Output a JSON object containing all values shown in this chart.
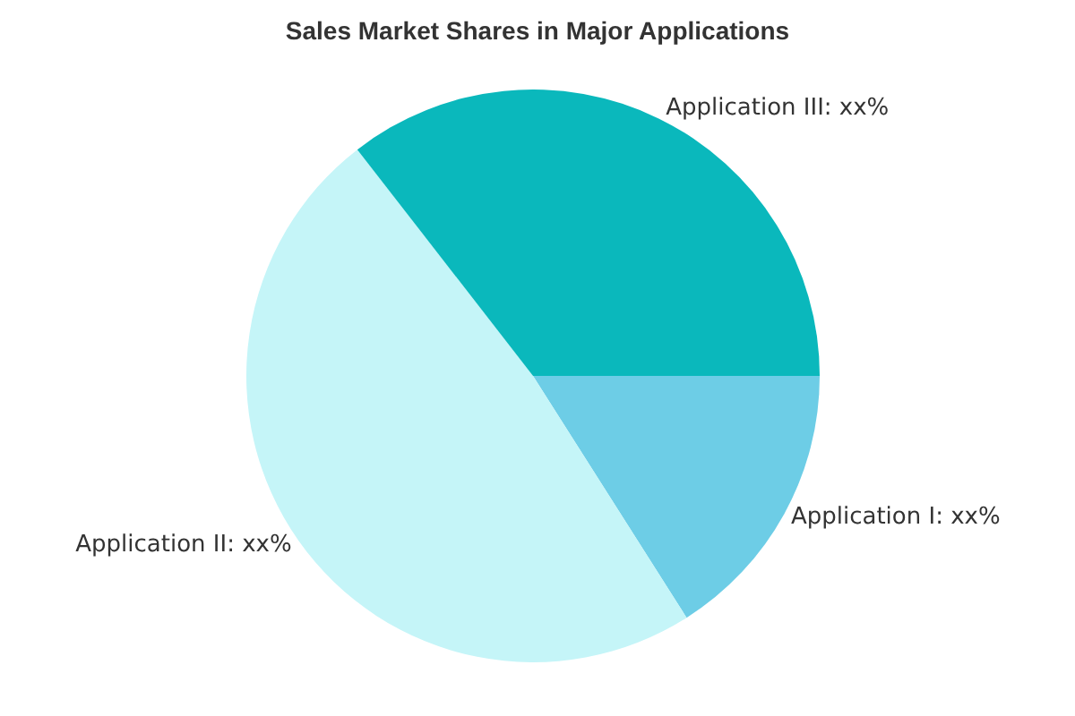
{
  "chart_data": {
    "type": "pie",
    "title": "Sales Market Shares in Major Applications",
    "categories": [
      "Application I: xx%",
      "Application II: xx%",
      "Application III: xx%"
    ],
    "values": [
      16,
      48.5,
      35.5
    ],
    "colors": [
      "#6dcde6",
      "#c5f5f8",
      "#0ab8bc"
    ],
    "legend": false
  }
}
